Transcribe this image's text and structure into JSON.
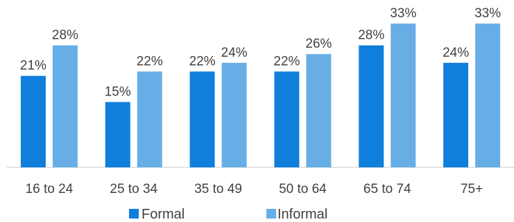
{
  "chart_data": {
    "type": "bar",
    "categories": [
      "16 to 24",
      "25 to 34",
      "35 to 49",
      "50 to 64",
      "65 to 74",
      "75+"
    ],
    "series": [
      {
        "name": "Formal",
        "values": [
          21,
          15,
          22,
          22,
          28,
          24
        ],
        "color": "#0f7fdb"
      },
      {
        "name": "Informal",
        "values": [
          28,
          22,
          24,
          26,
          33,
          33
        ],
        "color": "#67aee6"
      }
    ],
    "value_suffix": "%",
    "ylim": [
      0,
      36
    ],
    "grid": false,
    "legend_position": "bottom",
    "axis_color": "#c8c8c8"
  }
}
